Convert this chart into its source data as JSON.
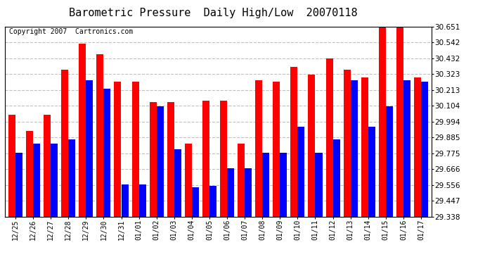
{
  "title": "Barometric Pressure  Daily High/Low  20070118",
  "copyright": "Copyright 2007  Cartronics.com",
  "categories": [
    "12/25",
    "12/26",
    "12/27",
    "12/28",
    "12/29",
    "12/30",
    "12/31",
    "01/01",
    "01/02",
    "01/03",
    "01/04",
    "01/05",
    "01/06",
    "01/07",
    "01/08",
    "01/09",
    "01/10",
    "01/11",
    "01/12",
    "01/13",
    "01/14",
    "01/15",
    "01/16",
    "01/17"
  ],
  "highs": [
    30.04,
    29.93,
    30.04,
    30.35,
    30.53,
    30.46,
    30.27,
    30.27,
    30.13,
    30.13,
    29.84,
    30.14,
    30.14,
    29.84,
    30.28,
    30.27,
    30.37,
    30.32,
    30.43,
    30.35,
    30.3,
    30.651,
    30.651,
    30.3
  ],
  "lows": [
    29.78,
    29.84,
    29.84,
    29.87,
    30.28,
    30.22,
    29.56,
    29.56,
    30.1,
    29.8,
    29.54,
    29.55,
    29.67,
    29.67,
    29.78,
    29.78,
    29.96,
    29.78,
    29.87,
    30.28,
    29.96,
    30.1,
    30.28,
    30.27
  ],
  "ymin": 29.338,
  "ymax": 30.651,
  "yticks": [
    29.338,
    29.447,
    29.556,
    29.666,
    29.775,
    29.885,
    29.994,
    30.104,
    30.213,
    30.323,
    30.432,
    30.542,
    30.651
  ],
  "bar_color_high": "#FF0000",
  "bar_color_low": "#0000FF",
  "background_color": "#FFFFFF",
  "grid_color": "#C0C0C0",
  "title_fontsize": 11,
  "copyright_fontsize": 7
}
